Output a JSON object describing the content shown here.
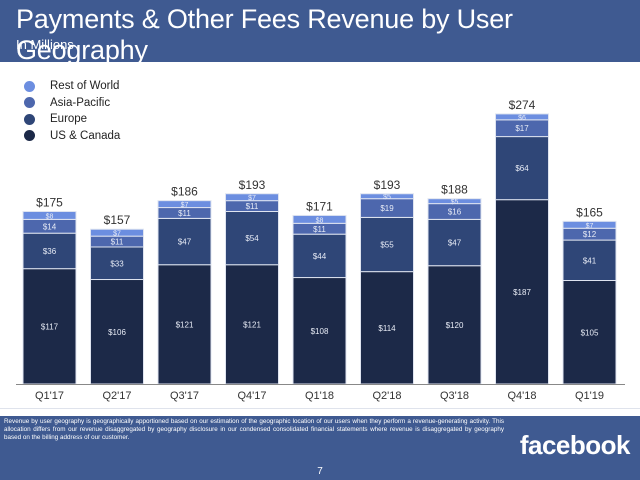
{
  "header": {
    "title": "Payments & Other Fees Revenue by User Geography",
    "subtitle": "In Millions"
  },
  "colors": {
    "header_bg": "#3f5a91",
    "rest_of_world": "#6c8ee0",
    "asia_pacific": "#4d67ad",
    "europe": "#2f4677",
    "us_canada": "#1c2948"
  },
  "footer": {
    "footnote": "Revenue by user geography is geographically apportioned based on our estimation of the geographic location of our users when they perform a revenue-generating activity. This allocation differs from our revenue disaggregated by geography disclosure in our condensed consolidated financial statements where revenue is disaggregated by geography based on the billing address of our customer.",
    "logo": "facebook",
    "page_number": "7"
  },
  "chart_data": {
    "type": "bar",
    "stacked": true,
    "title": "Payments & Other Fees Revenue by User Geography",
    "subtitle": "In Millions",
    "xlabel": "",
    "ylabel": "",
    "ylim": [
      0,
      280
    ],
    "grid": false,
    "legend_position": "top-left",
    "value_prefix": "$",
    "categories": [
      "Q1'17",
      "Q2'17",
      "Q3'17",
      "Q4'17",
      "Q1'18",
      "Q2'18",
      "Q3'18",
      "Q4'18",
      "Q1'19"
    ],
    "series": [
      {
        "name": "US & Canada",
        "color": "#1c2948",
        "values": [
          117,
          106,
          121,
          121,
          108,
          114,
          120,
          187,
          105
        ]
      },
      {
        "name": "Europe",
        "color": "#2f4677",
        "values": [
          36,
          33,
          47,
          54,
          44,
          55,
          47,
          64,
          41
        ]
      },
      {
        "name": "Asia-Pacific",
        "color": "#4d67ad",
        "values": [
          14,
          11,
          11,
          11,
          11,
          19,
          16,
          17,
          12
        ]
      },
      {
        "name": "Rest of World",
        "color": "#6c8ee0",
        "values": [
          8,
          7,
          7,
          7,
          8,
          5,
          5,
          6,
          7
        ]
      }
    ],
    "totals": [
      175,
      157,
      186,
      193,
      171,
      193,
      188,
      274,
      165
    ],
    "legend": [
      "Rest of World",
      "Asia-Pacific",
      "Europe",
      "US & Canada"
    ]
  }
}
